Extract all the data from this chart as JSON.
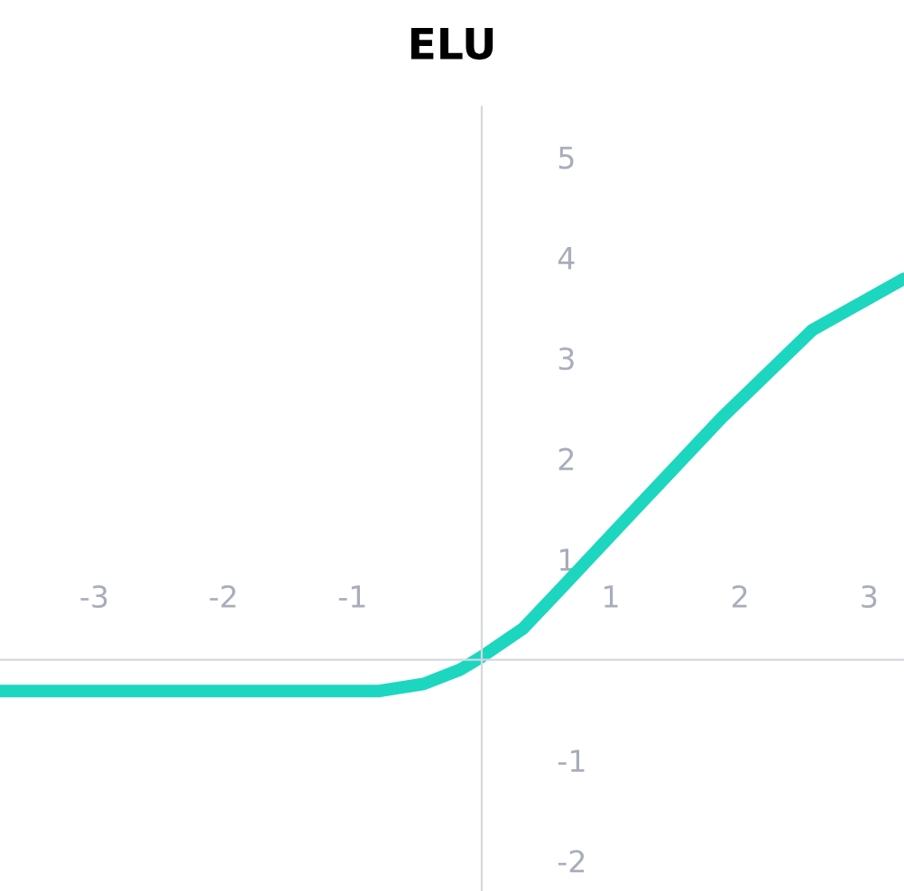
{
  "chart_data": {
    "type": "line",
    "title": "ELU",
    "series": [
      {
        "color": "#1dd6c0",
        "x": [
          -3.73,
          -3.54,
          -0.79,
          -0.45,
          -0.17,
          0,
          0.32,
          0.6,
          1.17,
          1.86,
          2.56,
          3.27
        ],
        "values": [
          -0.31,
          -0.31,
          -0.31,
          -0.24,
          -0.1,
          0.03,
          0.31,
          0.69,
          1.47,
          2.41,
          3.28,
          3.79
        ]
      }
    ],
    "xlim": [
      -3.73,
      3.27
    ],
    "ylim": [
      -2.3,
      5.5
    ],
    "xticks": [
      -3,
      -2,
      -1,
      1,
      2,
      3
    ],
    "yticks": [
      -2,
      -1,
      1,
      2,
      3,
      4,
      5
    ],
    "grid": false,
    "legend": false,
    "marker": "none",
    "line_style": "solid"
  }
}
